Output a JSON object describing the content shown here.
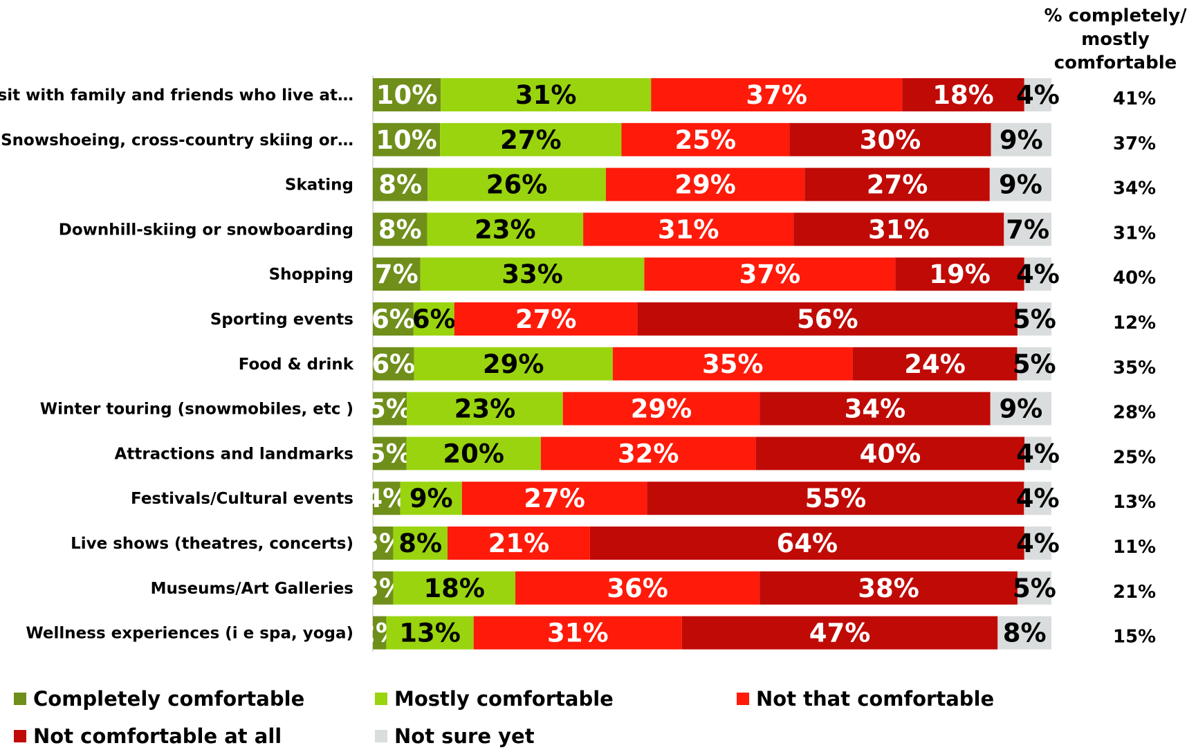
{
  "chart_data": {
    "type": "bar",
    "orientation": "horizontal",
    "stacked": true,
    "normalized": true,
    "title": "",
    "xlabel": "",
    "ylabel": "",
    "ylim": [
      0,
      100
    ],
    "grid": false,
    "legend_position": "bottom",
    "totals_header": "% completely/ mostly comfortable",
    "categories": [
      "Visit with family and friends who live at…",
      "Snowshoeing, cross-country skiing or…",
      "Skating",
      "Downhill-skiing or snowboarding",
      "Shopping",
      "Sporting events",
      "Food & drink",
      "Winter touring (snowmobiles, etc )",
      "Attractions and landmarks",
      "Festivals/Cultural events",
      "Live shows (theatres, concerts)",
      "Museums/Art Galleries",
      "Wellness experiences (i e  spa, yoga)"
    ],
    "series": [
      {
        "name": "Completely comfortable",
        "color": "#6f8f1a",
        "label_color": "#ffffff",
        "values": [
          10,
          10,
          8,
          8,
          7,
          6,
          6,
          5,
          5,
          4,
          3,
          3,
          2
        ]
      },
      {
        "name": "Mostly comfortable",
        "color": "#99d40f",
        "label_color": "#000000",
        "values": [
          31,
          27,
          26,
          23,
          33,
          6,
          29,
          23,
          20,
          9,
          8,
          18,
          13
        ]
      },
      {
        "name": "Not that comfortable",
        "color": "#ff1a0a",
        "label_color": "#ffffff",
        "values": [
          37,
          25,
          29,
          31,
          37,
          27,
          35,
          29,
          32,
          27,
          21,
          36,
          31
        ]
      },
      {
        "name": "Not comfortable at all",
        "color": "#c00a06",
        "label_color": "#ffffff",
        "values": [
          18,
          30,
          27,
          31,
          19,
          56,
          24,
          34,
          40,
          55,
          64,
          38,
          47
        ]
      },
      {
        "name": "Not sure yet",
        "color": "#dadddd",
        "label_color": "#000000",
        "values": [
          4,
          9,
          9,
          7,
          4,
          5,
          5,
          9,
          4,
          4,
          4,
          5,
          8
        ]
      }
    ],
    "totals": [
      "41%",
      "37%",
      "34%",
      "31%",
      "40%",
      "12%",
      "35%",
      "28%",
      "25%",
      "13%",
      "11%",
      "21%",
      "15%"
    ]
  }
}
